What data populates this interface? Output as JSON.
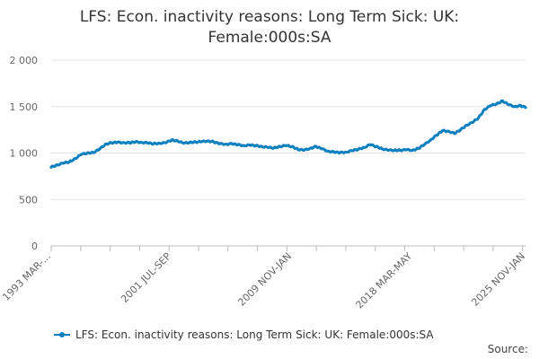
{
  "chart_data": {
    "type": "line",
    "title_lines": [
      "LFS: Econ. inactivity reasons: Long Term Sick: UK:",
      "Female:000s:SA"
    ],
    "xlabel": "",
    "ylabel": "",
    "ylim": [
      0,
      2000
    ],
    "y_ticks": [
      0,
      500,
      1000,
      1500,
      2000
    ],
    "y_tick_labels": [
      "0",
      "500",
      "1 000",
      "1 500",
      "2 000"
    ],
    "x_tick_labels": [
      "1993 MAR-...",
      "2001 JUL-SEP",
      "2009 NOV-JAN",
      "2018 MAR-MAY",
      "2025 NOV-JAN"
    ],
    "x_tick_label_positions": [
      0,
      100,
      200,
      300,
      394
    ],
    "x_period_count": 394,
    "grid": "horizontal",
    "legend_position": "bottom",
    "series": [
      {
        "name": "LFS: Econ. inactivity reasons: Long Term Sick: UK: Female:000s:SA",
        "color": "#0c7fbf",
        "points": [
          [
            0,
            848
          ],
          [
            5,
            872
          ],
          [
            10,
            890
          ],
          [
            15,
            905
          ],
          [
            20,
            940
          ],
          [
            25,
            985
          ],
          [
            30,
            1000
          ],
          [
            35,
            1005
          ],
          [
            40,
            1040
          ],
          [
            45,
            1095
          ],
          [
            50,
            1110
          ],
          [
            55,
            1115
          ],
          [
            60,
            1112
          ],
          [
            65,
            1110
          ],
          [
            70,
            1120
          ],
          [
            75,
            1115
          ],
          [
            80,
            1108
          ],
          [
            85,
            1100
          ],
          [
            90,
            1105
          ],
          [
            95,
            1110
          ],
          [
            100,
            1140
          ],
          [
            105,
            1130
          ],
          [
            110,
            1105
          ],
          [
            115,
            1115
          ],
          [
            120,
            1118
          ],
          [
            125,
            1122
          ],
          [
            130,
            1130
          ],
          [
            135,
            1120
          ],
          [
            140,
            1100
          ],
          [
            145,
            1095
          ],
          [
            150,
            1100
          ],
          [
            155,
            1090
          ],
          [
            160,
            1080
          ],
          [
            165,
            1085
          ],
          [
            170,
            1080
          ],
          [
            175,
            1070
          ],
          [
            180,
            1060
          ],
          [
            185,
            1055
          ],
          [
            190,
            1070
          ],
          [
            195,
            1080
          ],
          [
            200,
            1070
          ],
          [
            205,
            1040
          ],
          [
            210,
            1030
          ],
          [
            215,
            1050
          ],
          [
            220,
            1070
          ],
          [
            225,
            1045
          ],
          [
            230,
            1020
          ],
          [
            235,
            1010
          ],
          [
            240,
            1005
          ],
          [
            245,
            1010
          ],
          [
            250,
            1025
          ],
          [
            255,
            1040
          ],
          [
            260,
            1060
          ],
          [
            265,
            1090
          ],
          [
            270,
            1070
          ],
          [
            275,
            1045
          ],
          [
            280,
            1030
          ],
          [
            285,
            1030
          ],
          [
            290,
            1030
          ],
          [
            295,
            1035
          ],
          [
            300,
            1030
          ],
          [
            305,
            1050
          ],
          [
            310,
            1090
          ],
          [
            315,
            1140
          ],
          [
            320,
            1190
          ],
          [
            325,
            1240
          ],
          [
            330,
            1235
          ],
          [
            335,
            1210
          ],
          [
            340,
            1250
          ],
          [
            345,
            1300
          ],
          [
            350,
            1330
          ],
          [
            355,
            1380
          ],
          [
            360,
            1470
          ],
          [
            365,
            1510
          ],
          [
            370,
            1530
          ],
          [
            375,
            1560
          ],
          [
            380,
            1520
          ],
          [
            385,
            1500
          ],
          [
            390,
            1510
          ],
          [
            394,
            1490
          ]
        ]
      }
    ],
    "source_label": "Source:"
  }
}
